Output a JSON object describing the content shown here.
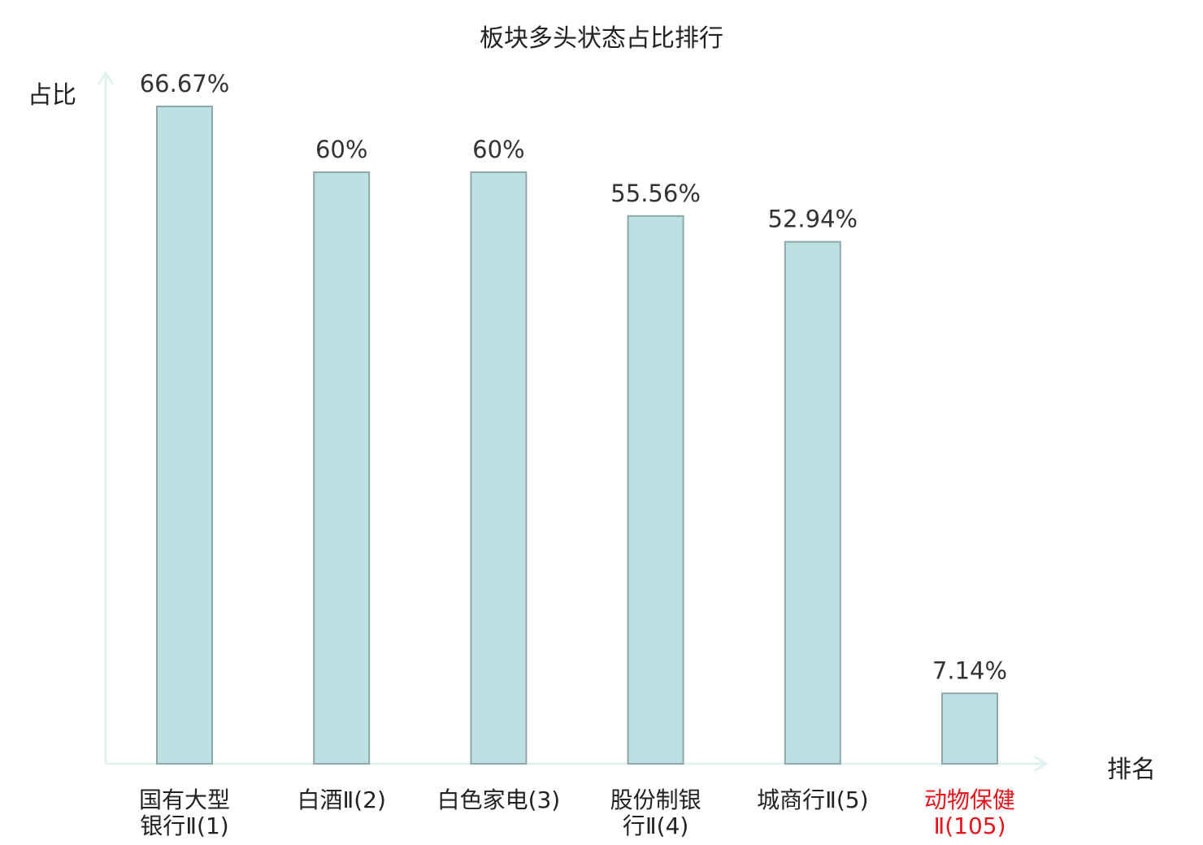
{
  "chart_data": {
    "type": "bar",
    "title": "板块多头状态占比排行",
    "ylabel": "占比",
    "xlabel": "排名",
    "ylim": [
      0,
      70
    ],
    "grid": false,
    "legend": "none",
    "categories": [
      [
        "国有大型",
        "银行Ⅱ(1)"
      ],
      [
        "白酒Ⅱ(2)"
      ],
      [
        "白色家电(3)"
      ],
      [
        "股份制银",
        "行Ⅱ(4)"
      ],
      [
        "城商行Ⅱ(5)"
      ],
      [
        "动物保健",
        "Ⅱ(105)"
      ]
    ],
    "values": [
      66.67,
      60,
      60,
      55.56,
      52.94,
      7.14
    ],
    "value_labels": [
      "66.67%",
      "60%",
      "60%",
      "55.56%",
      "52.94%",
      "7.14%"
    ],
    "highlight_index": 5,
    "colors": {
      "bar_fill": "#bde0e3",
      "bar_stroke": "#8fa7a8",
      "axis": "#e0f2ef",
      "text": "#333333",
      "highlight_text": "#e8151b"
    }
  }
}
